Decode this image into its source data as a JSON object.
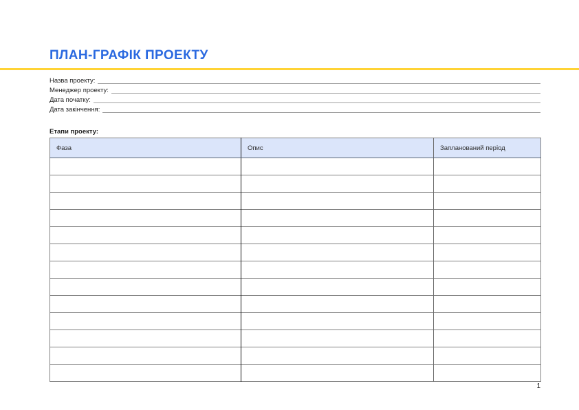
{
  "colors": {
    "title": "#2a69e0",
    "accent_line": "#ffd335",
    "table_header_bg": "#dbe5fa",
    "table_header_border": "#5b6674",
    "grid_line": "#808080",
    "column_divider_1": "#161616",
    "column_divider_2": "#6e6e6e",
    "underline": "#9e9e9e",
    "text": "#212121"
  },
  "title": {
    "text": "ПЛАН-ГРАФІК ПРОЕКТУ"
  },
  "form_fields": [
    {
      "label": "Назва проекту:",
      "value": ""
    },
    {
      "label": "Менеджер проекту:",
      "value": ""
    },
    {
      "label": "Дата початку:",
      "value": ""
    },
    {
      "label": "Дата закінчення:",
      "value": ""
    }
  ],
  "table": {
    "section_label": "Етапи проекту:",
    "headers": [
      "Фаза",
      "Опис",
      "Запланований період"
    ],
    "rows": [
      [
        "",
        "",
        ""
      ],
      [
        "",
        "",
        ""
      ],
      [
        "",
        "",
        ""
      ],
      [
        "",
        "",
        ""
      ],
      [
        "",
        "",
        ""
      ],
      [
        "",
        "",
        ""
      ],
      [
        "",
        "",
        ""
      ],
      [
        "",
        "",
        ""
      ],
      [
        "",
        "",
        ""
      ],
      [
        "",
        "",
        ""
      ],
      [
        "",
        "",
        ""
      ],
      [
        "",
        "",
        ""
      ],
      [
        "",
        "",
        ""
      ]
    ]
  },
  "page": {
    "number": "1"
  }
}
